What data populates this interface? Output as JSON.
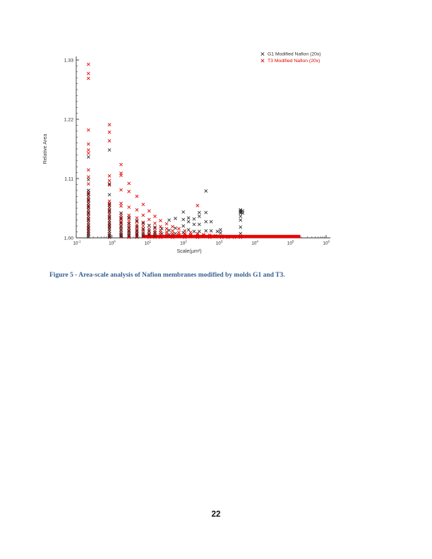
{
  "page": {
    "number": "22"
  },
  "caption": {
    "text": "Figure 5 - Area-scale analysis of Nafion membranes modified by molds G1 and T3.",
    "color": "#365F91"
  },
  "chart_data": {
    "type": "scatter",
    "title": "",
    "xlabel": "Scale(µm²)",
    "ylabel": "Relative Area",
    "x_scale": "log",
    "y_scale": "linear",
    "x_tick_exponents": [
      -1,
      0,
      1,
      2,
      3,
      4,
      5,
      6
    ],
    "xlim_exponents": [
      -1,
      6.12
    ],
    "ylim": [
      1.0,
      1.33
    ],
    "y_ticks": [
      "1.00",
      "1.11",
      "1.22",
      "1.33"
    ],
    "y_minor_step": 0.011,
    "grid": false,
    "marker": "x",
    "legend_position": "top-right",
    "axis_color": "#333333",
    "series": [
      {
        "name": "T3 Modified Nafion (20x)",
        "color": "#e00000",
        "columns": [
          {
            "x": 0.22,
            "ys": [
              1.322,
              1.305,
              1.296,
              1.2,
              1.174,
              1.163,
              1.157,
              1.126,
              1.113,
              1.1,
              1.088,
              1.084,
              1.08,
              1.076,
              1.072,
              1.068,
              1.064,
              1.06,
              1.056,
              1.052,
              1.048,
              1.044,
              1.04,
              1.036,
              1.032,
              1.028,
              1.024,
              1.02,
              1.016,
              1.012,
              1.008,
              1.005,
              1.002
            ]
          },
          {
            "x": 0.85,
            "ys": [
              1.21,
              1.196,
              1.18,
              1.115,
              1.106,
              1.098,
              1.068,
              1.064,
              1.06,
              1.056,
              1.052,
              1.048,
              1.044,
              1.04,
              1.036,
              1.032,
              1.028,
              1.024,
              1.02,
              1.016,
              1.012,
              1.008,
              1.005,
              1.002
            ]
          },
          {
            "x": 1.8,
            "ys": [
              1.136,
              1.12,
              1.116,
              1.089,
              1.064,
              1.059,
              1.046,
              1.042,
              1.038,
              1.034,
              1.03,
              1.026,
              1.022,
              1.018,
              1.014,
              1.01,
              1.007,
              1.004,
              1.002
            ]
          },
          {
            "x": 3.0,
            "ys": [
              1.101,
              1.086,
              1.057,
              1.042,
              1.036,
              1.031,
              1.026,
              1.022,
              1.018,
              1.014,
              1.011,
              1.008,
              1.005,
              1.003,
              1.001
            ]
          },
          {
            "x": 5.0,
            "ys": [
              1.077,
              1.052,
              1.037,
              1.03,
              1.024,
              1.019,
              1.015,
              1.011,
              1.008,
              1.005,
              1.003,
              1.001
            ]
          },
          {
            "x": 7.5,
            "ys": [
              1.062,
              1.042,
              1.029,
              1.022,
              1.017,
              1.013,
              1.009,
              1.006,
              1.004,
              1.002
            ]
          },
          {
            "x": 11,
            "ys": [
              1.05,
              1.034,
              1.023,
              1.017,
              1.012,
              1.008,
              1.005,
              1.003,
              1.001
            ]
          },
          {
            "x": 16,
            "ys": [
              1.04,
              1.027,
              1.018,
              1.013,
              1.009,
              1.006,
              1.003,
              1.001
            ]
          },
          {
            "x": 23,
            "ys": [
              1.032,
              1.021,
              1.014,
              1.01,
              1.006,
              1.003,
              1.001
            ]
          },
          {
            "x": 34,
            "ys": [
              1.026,
              1.017,
              1.011,
              1.007,
              1.004,
              1.002
            ]
          },
          {
            "x": 50,
            "ys": [
              1.021,
              1.013,
              1.008,
              1.005,
              1.003,
              1.001
            ]
          },
          {
            "x": 75,
            "ys": [
              1.017,
              1.01,
              1.006,
              1.004,
              1.002
            ]
          },
          {
            "x": 110,
            "ys": [
              1.013,
              1.008,
              1.005,
              1.003,
              1.001
            ]
          },
          {
            "x": 160,
            "ys": [
              1.01,
              1.006,
              1.004,
              1.002
            ]
          },
          {
            "x": 250,
            "ys": [
              1.06,
              1.008,
              1.005,
              1.003,
              1.001
            ]
          },
          {
            "x": 370,
            "ys": [
              1.006,
              1.004,
              1.002
            ]
          },
          {
            "x": 550,
            "ys": [
              1.005,
              1.003,
              1.001
            ]
          },
          {
            "x": 800,
            "ys": [
              1.004,
              1.002
            ]
          },
          {
            "x": 1200,
            "ys": [
              1.003,
              1.001
            ]
          },
          {
            "x": 1800,
            "ys": [
              1.002,
              1.001
            ]
          },
          {
            "x": 2700,
            "ys": [
              1.002,
              1.001
            ]
          },
          {
            "x": 4000,
            "ys": [
              1.001
            ]
          }
        ],
        "baseline_band": {
          "x_min": 7,
          "x_max": 190000,
          "y_min": 1.0,
          "y_max": 1.005,
          "color": "#ee0000",
          "note": "dense overlapping red x-markers forming a solid band at relative area 1.00"
        }
      },
      {
        "name": "G1 Modified Nafion (20x)",
        "color": "#2b2b2b",
        "columns": [
          {
            "x": 0.22,
            "ys": [
              1.15,
              1.108,
              1.088,
              1.082,
              1.076,
              1.07,
              1.064,
              1.058,
              1.052,
              1.046,
              1.04,
              1.034,
              1.028,
              1.023,
              1.018,
              1.013,
              1.009,
              1.005,
              1.002
            ]
          },
          {
            "x": 0.85,
            "ys": [
              1.163,
              1.1,
              1.08,
              1.062,
              1.056,
              1.05,
              1.044,
              1.038,
              1.032,
              1.027,
              1.022,
              1.017,
              1.012,
              1.008,
              1.004,
              1.001
            ]
          },
          {
            "x": 1.8,
            "ys": [
              1.046,
              1.036,
              1.028,
              1.021,
              1.015,
              1.01,
              1.006,
              1.003
            ]
          },
          {
            "x": 3.0,
            "ys": [
              1.038,
              1.027,
              1.019,
              1.013,
              1.008,
              1.004
            ]
          },
          {
            "x": 5.0,
            "ys": [
              1.032,
              1.021,
              1.013,
              1.007,
              1.003
            ]
          },
          {
            "x": 7.5,
            "ys": [
              1.027,
              1.016,
              1.009,
              1.004
            ]
          },
          {
            "x": 11,
            "ys": [
              1.023,
              1.013,
              1.006
            ]
          },
          {
            "x": 16,
            "ys": [
              1.02,
              1.01,
              1.004
            ]
          },
          {
            "x": 25,
            "ys": [
              1.017,
              1.008
            ]
          },
          {
            "x": 40,
            "ys": [
              1.033,
              1.014,
              1.006
            ]
          },
          {
            "x": 60,
            "ys": [
              1.036,
              1.018,
              1.008
            ]
          },
          {
            "x": 100,
            "ys": [
              1.048,
              1.034,
              1.022,
              1.01
            ]
          },
          {
            "x": 140,
            "ys": [
              1.037,
              1.03,
              1.015
            ]
          },
          {
            "x": 200,
            "ys": [
              1.035,
              1.025,
              1.012
            ]
          },
          {
            "x": 280,
            "ys": [
              1.047,
              1.04,
              1.025,
              1.012
            ]
          },
          {
            "x": 430,
            "ys": [
              1.087,
              1.047,
              1.03,
              1.013
            ]
          },
          {
            "x": 600,
            "ys": [
              1.03,
              1.013
            ]
          },
          {
            "x": 900,
            "ys": [
              1.012
            ]
          },
          {
            "x": 1100,
            "ys": [
              1.015,
              1.009
            ]
          },
          {
            "x": 4000,
            "ys": [
              1.052,
              1.05,
              1.048,
              1.046,
              1.04,
              1.033,
              1.02,
              1.008
            ]
          },
          {
            "x": 4600,
            "ys": [
              1.05,
              1.046
            ]
          }
        ]
      }
    ]
  }
}
